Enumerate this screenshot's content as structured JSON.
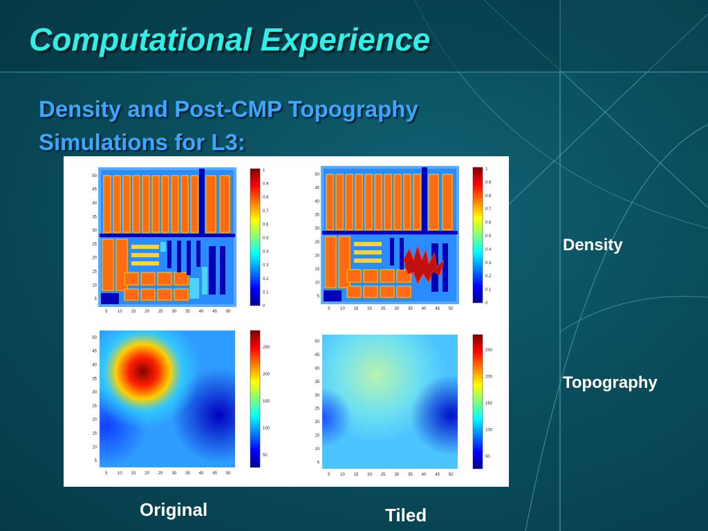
{
  "slide": {
    "title": "Computational Experience",
    "subtitle_line1": "Density and Post-CMP Topography",
    "subtitle_line2": "Simulations for L3:"
  },
  "row_labels": {
    "density": "Density",
    "topography": "Topography"
  },
  "column_labels": {
    "original": "Original",
    "tiled": "Tiled"
  },
  "plots": {
    "x_ticks": [
      "5",
      "10",
      "15",
      "20",
      "25",
      "30",
      "35",
      "40",
      "45",
      "50"
    ],
    "density_y_ticks": [
      "50",
      "45",
      "40",
      "35",
      "30",
      "25",
      "20",
      "15",
      "10",
      "5"
    ],
    "topography_y_ticks": [
      "50",
      "45",
      "40",
      "35",
      "30",
      "25",
      "20",
      "15",
      "10",
      "5"
    ],
    "density_colorbar_ticks": [
      "1",
      "0.9",
      "0.8",
      "0.7",
      "0.6",
      "0.5",
      "0.4",
      "0.3",
      "0.2",
      "0.1",
      "0"
    ],
    "topography_colorbar_ticks": [
      "250",
      "200",
      "150",
      "100",
      "50"
    ]
  },
  "colormap": "jet"
}
